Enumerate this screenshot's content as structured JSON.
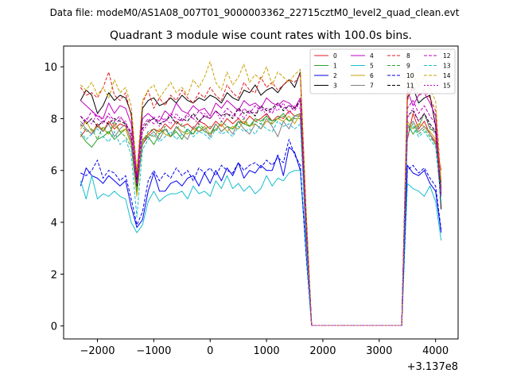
{
  "chart_data": {
    "type": "line",
    "suptitle": "Data file: modeM0/AS1A08_007T01_9000003362_22715cztM0_level2_quad_clean.evt",
    "title": "Quadrant 3 module wise count rates with 100.0s bins.",
    "xlabel": "",
    "ylabel": "",
    "offset_label": "+3.137e8",
    "xlim": [
      -2600,
      4400
    ],
    "ylim": [
      -0.5,
      10.8
    ],
    "xticks": [
      -2000,
      -1000,
      0,
      1000,
      2000,
      3000,
      4000
    ],
    "xtick_labels": [
      "−2000",
      "−1000",
      "0",
      "1000",
      "2000",
      "3000",
      "4000"
    ],
    "yticks": [
      0,
      2,
      4,
      6,
      8,
      10
    ],
    "ytick_labels": [
      "0",
      "2",
      "4",
      "6",
      "8",
      "10"
    ],
    "legend_position": "top-right",
    "x": [
      -2300,
      -2200,
      -2100,
      -2000,
      -1900,
      -1800,
      -1700,
      -1600,
      -1500,
      -1400,
      -1300,
      -1200,
      -1100,
      -1000,
      -900,
      -800,
      -700,
      -600,
      -500,
      -400,
      -300,
      -200,
      -100,
      0,
      100,
      200,
      300,
      400,
      500,
      600,
      700,
      800,
      900,
      1000,
      1100,
      1200,
      1300,
      1400,
      1500,
      1600,
      1700,
      1800,
      1900,
      2000,
      2100,
      2200,
      2300,
      2400,
      2500,
      2600,
      2700,
      2800,
      2900,
      3000,
      3100,
      3200,
      3300,
      3400,
      3500,
      3600,
      3700,
      3800,
      3900,
      4000,
      4100
    ],
    "series": [
      {
        "name": "0",
        "color": "#e41a1c",
        "dash": "solid",
        "values": [
          7.3,
          7.6,
          7.4,
          7.8,
          7.5,
          7.9,
          7.6,
          7.8,
          7.7,
          7.2,
          5.4,
          7.0,
          7.4,
          7.6,
          7.5,
          7.8,
          7.6,
          7.9,
          7.7,
          7.8,
          7.6,
          7.9,
          7.8,
          7.6,
          7.9,
          7.7,
          8.0,
          7.8,
          8.0,
          7.8,
          8.1,
          7.9,
          8.0,
          8.2,
          7.9,
          8.1,
          8.0,
          8.3,
          8.1,
          8.2,
          3.8,
          0.02,
          0.02,
          0.02,
          0.02,
          0.02,
          0.02,
          0.02,
          0.02,
          0.02,
          0.02,
          0.02,
          0.02,
          0.02,
          0.02,
          0.02,
          0.02,
          0.02,
          7.2,
          8.2,
          7.6,
          7.9,
          7.4,
          7.1,
          6.0
        ]
      },
      {
        "name": "1",
        "color": "#2ca02c",
        "dash": "solid",
        "values": [
          7.4,
          7.1,
          6.9,
          7.2,
          7.3,
          7.5,
          7.2,
          7.4,
          7.6,
          7.0,
          5.1,
          7.2,
          7.3,
          7.0,
          7.4,
          7.6,
          7.3,
          7.5,
          7.2,
          7.6,
          7.4,
          7.7,
          7.5,
          7.4,
          7.8,
          7.5,
          7.7,
          7.6,
          7.9,
          7.8,
          7.7,
          8.0,
          7.9,
          8.1,
          7.9,
          8.0,
          8.2,
          7.9,
          8.1,
          8.2,
          3.7,
          0.02,
          0.02,
          0.02,
          0.02,
          0.02,
          0.02,
          0.02,
          0.02,
          0.02,
          0.02,
          0.02,
          0.02,
          0.02,
          0.02,
          0.02,
          0.02,
          0.02,
          7.8,
          7.4,
          7.7,
          8.2,
          7.6,
          7.5,
          5.5
        ]
      },
      {
        "name": "2",
        "color": "#0000ee",
        "dash": "solid",
        "values": [
          5.4,
          6.1,
          5.8,
          5.7,
          5.5,
          5.8,
          5.6,
          5.4,
          5.6,
          4.6,
          3.8,
          4.1,
          5.2,
          5.9,
          5.2,
          5.2,
          5.5,
          5.6,
          5.4,
          5.7,
          5.8,
          5.4,
          5.9,
          5.5,
          6.0,
          5.6,
          6.1,
          5.8,
          6.3,
          5.7,
          6.0,
          5.9,
          6.2,
          6.0,
          6.0,
          6.6,
          5.8,
          6.9,
          6.7,
          6.0,
          3.0,
          0.02,
          0.02,
          0.02,
          0.02,
          0.02,
          0.02,
          0.02,
          0.02,
          0.02,
          0.02,
          0.02,
          0.02,
          0.02,
          0.02,
          0.02,
          0.02,
          0.02,
          6.2,
          5.9,
          5.8,
          6.0,
          5.5,
          5.2,
          3.6
        ]
      },
      {
        "name": "3",
        "color": "#000000",
        "dash": "solid",
        "values": [
          8.7,
          9.1,
          8.9,
          8.2,
          8.5,
          9.0,
          8.7,
          8.9,
          8.8,
          8.2,
          5.6,
          8.4,
          8.7,
          8.8,
          8.5,
          8.6,
          8.8,
          8.6,
          8.9,
          8.7,
          8.6,
          8.8,
          8.7,
          8.9,
          8.8,
          8.6,
          9.0,
          8.8,
          8.7,
          9.1,
          9.0,
          9.3,
          8.9,
          9.1,
          9.2,
          9.0,
          9.3,
          9.5,
          9.2,
          9.8,
          4.5,
          0.02,
          0.02,
          0.02,
          0.02,
          0.02,
          0.02,
          0.02,
          0.02,
          0.02,
          0.02,
          0.02,
          0.02,
          0.02,
          0.02,
          0.02,
          0.02,
          0.02,
          8.8,
          9.2,
          8.6,
          8.8,
          8.9,
          7.7,
          4.5
        ]
      },
      {
        "name": "4",
        "color": "#c000c0",
        "dash": "solid",
        "values": [
          8.7,
          8.5,
          8.3,
          8.1,
          8.0,
          8.6,
          8.2,
          8.5,
          8.4,
          7.8,
          5.8,
          8.0,
          8.2,
          8.0,
          7.9,
          8.3,
          8.1,
          8.6,
          8.3,
          8.2,
          8.5,
          8.3,
          8.4,
          8.1,
          8.6,
          8.4,
          8.7,
          8.5,
          8.3,
          8.7,
          8.5,
          8.6,
          8.4,
          8.8,
          8.6,
          8.5,
          8.7,
          8.6,
          8.4,
          8.8,
          4.2,
          0.02,
          0.02,
          0.02,
          0.02,
          0.02,
          0.02,
          0.02,
          0.02,
          0.02,
          0.02,
          0.02,
          0.02,
          0.02,
          0.02,
          0.02,
          0.02,
          0.02,
          9.1,
          8.5,
          8.9,
          9.0,
          8.6,
          8.1,
          5.0
        ]
      },
      {
        "name": "5",
        "color": "#17becf",
        "dash": "solid",
        "values": [
          5.6,
          4.9,
          5.8,
          4.9,
          5.1,
          5.0,
          5.2,
          5.0,
          4.9,
          4.0,
          3.6,
          3.9,
          4.8,
          5.2,
          4.8,
          5.0,
          5.1,
          5.1,
          5.2,
          4.9,
          5.4,
          5.1,
          5.2,
          5.0,
          5.6,
          5.3,
          5.8,
          5.3,
          5.5,
          5.2,
          5.4,
          5.1,
          5.3,
          5.8,
          5.4,
          5.7,
          5.6,
          5.9,
          6.0,
          6.0,
          2.9,
          0.02,
          0.02,
          0.02,
          0.02,
          0.02,
          0.02,
          0.02,
          0.02,
          0.02,
          0.02,
          0.02,
          0.02,
          0.02,
          0.02,
          0.02,
          0.02,
          0.02,
          5.5,
          5.3,
          5.2,
          5.0,
          5.4,
          4.8,
          3.3
        ]
      },
      {
        "name": "6",
        "color": "#c7a000",
        "dash": "solid",
        "values": [
          7.6,
          7.9,
          7.5,
          7.7,
          7.6,
          7.4,
          7.8,
          7.5,
          7.6,
          7.0,
          5.0,
          7.2,
          7.4,
          7.3,
          7.6,
          7.4,
          7.3,
          7.7,
          7.5,
          7.4,
          7.6,
          7.5,
          7.7,
          7.4,
          7.6,
          7.8,
          7.5,
          7.7,
          7.6,
          7.9,
          7.7,
          7.8,
          7.6,
          7.9,
          7.8,
          8.0,
          7.9,
          8.1,
          7.8,
          8.2,
          3.6,
          0.02,
          0.02,
          0.02,
          0.02,
          0.02,
          0.02,
          0.02,
          0.02,
          0.02,
          0.02,
          0.02,
          0.02,
          0.02,
          0.02,
          0.02,
          0.02,
          0.02,
          7.9,
          7.6,
          7.8,
          7.7,
          7.5,
          7.2,
          5.6
        ]
      },
      {
        "name": "7",
        "color": "#808080",
        "dash": "solid",
        "values": [
          7.9,
          7.6,
          7.4,
          7.7,
          7.5,
          7.8,
          7.3,
          7.6,
          7.8,
          7.1,
          5.3,
          7.0,
          7.3,
          7.5,
          7.2,
          7.6,
          7.3,
          7.7,
          7.4,
          7.2,
          7.7,
          7.5,
          7.6,
          7.3,
          7.8,
          7.5,
          7.7,
          7.4,
          7.9,
          7.6,
          7.4,
          7.8,
          7.6,
          8.0,
          7.7,
          7.3,
          7.9,
          7.6,
          8.1,
          8.1,
          3.5,
          0.02,
          0.02,
          0.02,
          0.02,
          0.02,
          0.02,
          0.02,
          0.02,
          0.02,
          0.02,
          0.02,
          0.02,
          0.02,
          0.02,
          0.02,
          0.02,
          0.02,
          7.6,
          7.9,
          7.5,
          7.7,
          7.4,
          7.0,
          5.3
        ]
      },
      {
        "name": "8",
        "color": "#e41a1c",
        "dash": "dashed",
        "values": [
          9.2,
          8.9,
          9.0,
          8.8,
          9.2,
          9.8,
          8.9,
          8.7,
          9.0,
          8.1,
          5.9,
          8.6,
          9.1,
          8.4,
          8.8,
          8.5,
          8.9,
          8.7,
          9.1,
          8.8,
          8.6,
          9.0,
          8.8,
          9.2,
          8.9,
          8.7,
          9.3,
          9.0,
          8.8,
          9.4,
          9.1,
          9.0,
          9.6,
          9.2,
          9.4,
          9.1,
          9.3,
          9.5,
          9.4,
          9.7,
          4.4,
          0.02,
          0.02,
          0.02,
          0.02,
          0.02,
          0.02,
          0.02,
          0.02,
          0.02,
          0.02,
          0.02,
          0.02,
          0.02,
          0.02,
          0.02,
          0.02,
          0.02,
          8.7,
          9.3,
          8.9,
          9.1,
          8.8,
          8.3,
          5.3
        ]
      },
      {
        "name": "9",
        "color": "#2ca02c",
        "dash": "dashed",
        "values": [
          7.8,
          7.5,
          7.6,
          7.2,
          7.7,
          7.4,
          7.9,
          7.5,
          7.3,
          6.9,
          5.2,
          7.1,
          7.5,
          7.6,
          7.4,
          7.7,
          7.3,
          7.6,
          7.8,
          7.5,
          7.4,
          7.8,
          7.6,
          7.7,
          7.5,
          7.9,
          7.7,
          7.6,
          7.8,
          8.0,
          7.7,
          7.9,
          7.8,
          8.1,
          7.8,
          8.0,
          8.1,
          7.9,
          8.0,
          8.0,
          3.9,
          0.02,
          0.02,
          0.02,
          0.02,
          0.02,
          0.02,
          0.02,
          0.02,
          0.02,
          0.02,
          0.02,
          0.02,
          0.02,
          0.02,
          0.02,
          0.02,
          0.02,
          7.5,
          7.8,
          7.4,
          7.6,
          7.3,
          7.0,
          5.4
        ]
      },
      {
        "name": "10",
        "color": "#0000ee",
        "dash": "dashed",
        "values": [
          5.9,
          5.8,
          6.0,
          6.4,
          5.7,
          6.0,
          5.9,
          5.6,
          5.8,
          4.9,
          3.9,
          4.4,
          5.6,
          6.0,
          5.6,
          5.9,
          5.7,
          6.1,
          5.8,
          6.0,
          5.6,
          6.1,
          5.9,
          6.1,
          5.8,
          6.2,
          6.0,
          5.9,
          6.3,
          6.0,
          6.2,
          6.3,
          6.1,
          6.4,
          6.2,
          6.5,
          6.3,
          7.2,
          6.6,
          6.2,
          2.8,
          0.02,
          0.02,
          0.02,
          0.02,
          0.02,
          0.02,
          0.02,
          0.02,
          0.02,
          0.02,
          0.02,
          0.02,
          0.02,
          0.02,
          0.02,
          0.02,
          0.02,
          6.0,
          6.2,
          5.9,
          6.1,
          5.7,
          5.4,
          3.7
        ]
      },
      {
        "name": "11",
        "color": "#000000",
        "dash": "dashed",
        "values": [
          8.1,
          7.8,
          8.0,
          7.7,
          7.9,
          7.8,
          8.0,
          7.9,
          7.8,
          7.4,
          5.4,
          7.6,
          7.9,
          8.0,
          7.8,
          7.9,
          8.1,
          7.8,
          8.0,
          7.9,
          8.2,
          7.9,
          8.1,
          8.0,
          8.3,
          8.1,
          8.2,
          8.0,
          8.4,
          8.2,
          8.3,
          8.1,
          8.5,
          8.3,
          8.4,
          8.6,
          8.3,
          8.5,
          8.4,
          8.7,
          3.9,
          0.02,
          0.02,
          0.02,
          0.02,
          0.02,
          0.02,
          0.02,
          0.02,
          0.02,
          0.02,
          0.02,
          0.02,
          0.02,
          0.02,
          0.02,
          0.02,
          0.02,
          8.1,
          8.3,
          7.9,
          8.2,
          7.8,
          7.5,
          5.1
        ]
      },
      {
        "name": "12",
        "color": "#c000c0",
        "dash": "dashed",
        "values": [
          8.1,
          7.9,
          8.3,
          8.0,
          7.8,
          8.2,
          7.9,
          8.1,
          7.8,
          7.5,
          5.5,
          7.7,
          8.0,
          7.8,
          8.1,
          7.9,
          8.2,
          8.0,
          7.9,
          8.2,
          8.0,
          8.3,
          8.1,
          8.0,
          8.3,
          8.1,
          8.4,
          8.2,
          8.0,
          8.4,
          8.2,
          8.5,
          8.3,
          8.4,
          8.2,
          8.6,
          8.4,
          8.5,
          8.3,
          8.7,
          4.0,
          0.02,
          0.02,
          0.02,
          0.02,
          0.02,
          0.02,
          0.02,
          0.02,
          0.02,
          0.02,
          0.02,
          0.02,
          0.02,
          0.02,
          0.02,
          0.02,
          0.02,
          8.4,
          8.7,
          8.2,
          8.5,
          8.1,
          7.8,
          5.0
        ]
      },
      {
        "name": "13",
        "color": "#17becf",
        "dash": "dashed",
        "values": [
          7.5,
          7.2,
          7.4,
          7.6,
          7.3,
          7.1,
          7.5,
          7.0,
          7.2,
          6.6,
          4.2,
          6.8,
          7.2,
          7.4,
          7.1,
          7.3,
          7.5,
          7.2,
          7.4,
          7.6,
          7.3,
          7.5,
          7.4,
          7.2,
          7.6,
          7.4,
          7.5,
          7.3,
          7.7,
          7.5,
          7.6,
          7.4,
          7.8,
          7.6,
          7.5,
          7.9,
          7.7,
          7.8,
          7.6,
          7.8,
          3.2,
          0.02,
          0.02,
          0.02,
          0.02,
          0.02,
          0.02,
          0.02,
          0.02,
          0.02,
          0.02,
          0.02,
          0.02,
          0.02,
          0.02,
          0.02,
          0.02,
          0.02,
          7.4,
          7.7,
          7.3,
          7.5,
          7.2,
          6.9,
          4.8
        ]
      },
      {
        "name": "14",
        "color": "#c7a000",
        "dash": "dashed",
        "values": [
          9.3,
          9.1,
          9.4,
          8.9,
          9.2,
          8.8,
          9.5,
          9.0,
          9.2,
          8.5,
          6.0,
          8.7,
          9.1,
          9.3,
          8.8,
          9.1,
          9.4,
          9.0,
          9.2,
          8.9,
          9.5,
          9.2,
          9.6,
          10.2,
          9.4,
          9.1,
          9.8,
          9.3,
          9.6,
          10.1,
          9.4,
          9.7,
          9.5,
          10.0,
          9.3,
          9.8,
          9.6,
          9.4,
          9.7,
          9.9,
          4.6,
          0.02,
          0.02,
          0.02,
          0.02,
          0.02,
          0.02,
          0.02,
          0.02,
          0.02,
          0.02,
          0.02,
          0.02,
          0.02,
          0.02,
          0.02,
          0.02,
          0.02,
          9.4,
          9.8,
          9.2,
          9.6,
          9.1,
          8.7,
          5.6
        ]
      },
      {
        "name": "15",
        "color": "#c000c0",
        "dash": "dotted",
        "values": [
          7.7,
          8.0,
          7.8,
          8.2,
          7.9,
          8.1,
          7.7,
          8.0,
          7.9,
          7.3,
          5.5,
          7.5,
          7.8,
          8.1,
          7.7,
          8.0,
          7.8,
          8.2,
          7.9,
          8.1,
          8.0,
          7.8,
          8.2,
          8.0,
          8.3,
          7.9,
          8.2,
          8.1,
          8.4,
          8.0,
          8.3,
          8.2,
          8.5,
          8.1,
          8.4,
          8.3,
          8.6,
          8.2,
          8.5,
          8.4,
          3.8,
          0.02,
          0.02,
          0.02,
          0.02,
          0.02,
          0.02,
          0.02,
          0.02,
          0.02,
          0.02,
          0.02,
          0.02,
          0.02,
          0.02,
          0.02,
          0.02,
          0.02,
          8.0,
          8.4,
          7.9,
          8.2,
          7.7,
          7.4,
          5.2
        ]
      }
    ]
  }
}
